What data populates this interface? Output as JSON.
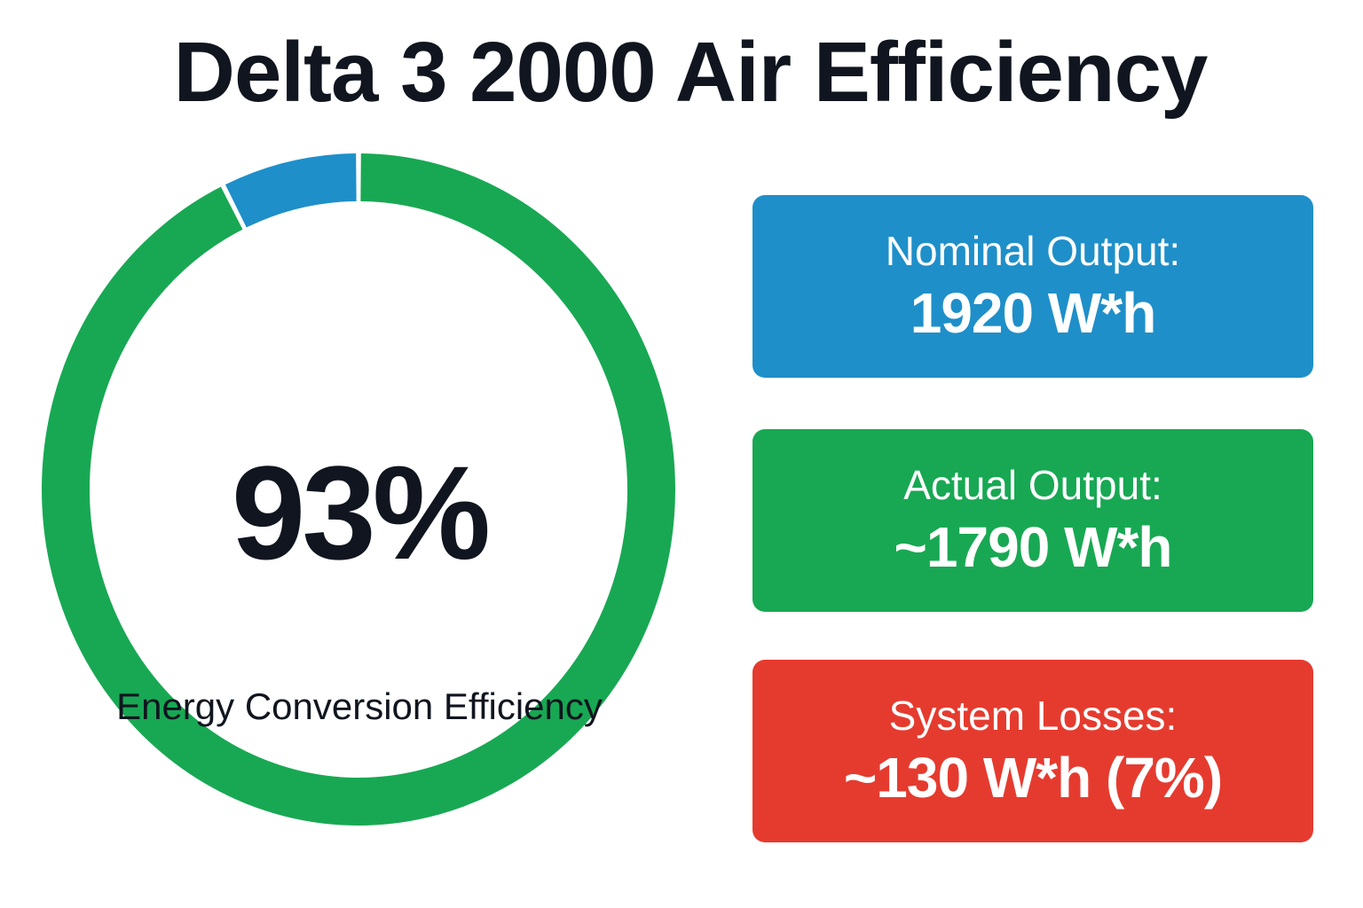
{
  "title": "Delta 3 2000 Air Efficiency",
  "colors": {
    "efficiency": "#18a853",
    "losses_segment": "#1f8fc9",
    "nominal_card": "#1f8fc9",
    "actual_card": "#18a853",
    "losses_card": "#e53b2f"
  },
  "chart_data": {
    "type": "pie",
    "segments": [
      {
        "label": "",
        "value": 93
      },
      {
        "label": "",
        "value": 7
      }
    ],
    "center_value": "93%",
    "center_label": "Energy Conversion Efficiency"
  },
  "cards": [
    {
      "label": "Nominal Output:",
      "value": "1920 W*h"
    },
    {
      "label": "Actual Output:",
      "value": "~1790 W*h"
    },
    {
      "label": "System Losses:",
      "value": "~130 W*h (7%)"
    }
  ]
}
